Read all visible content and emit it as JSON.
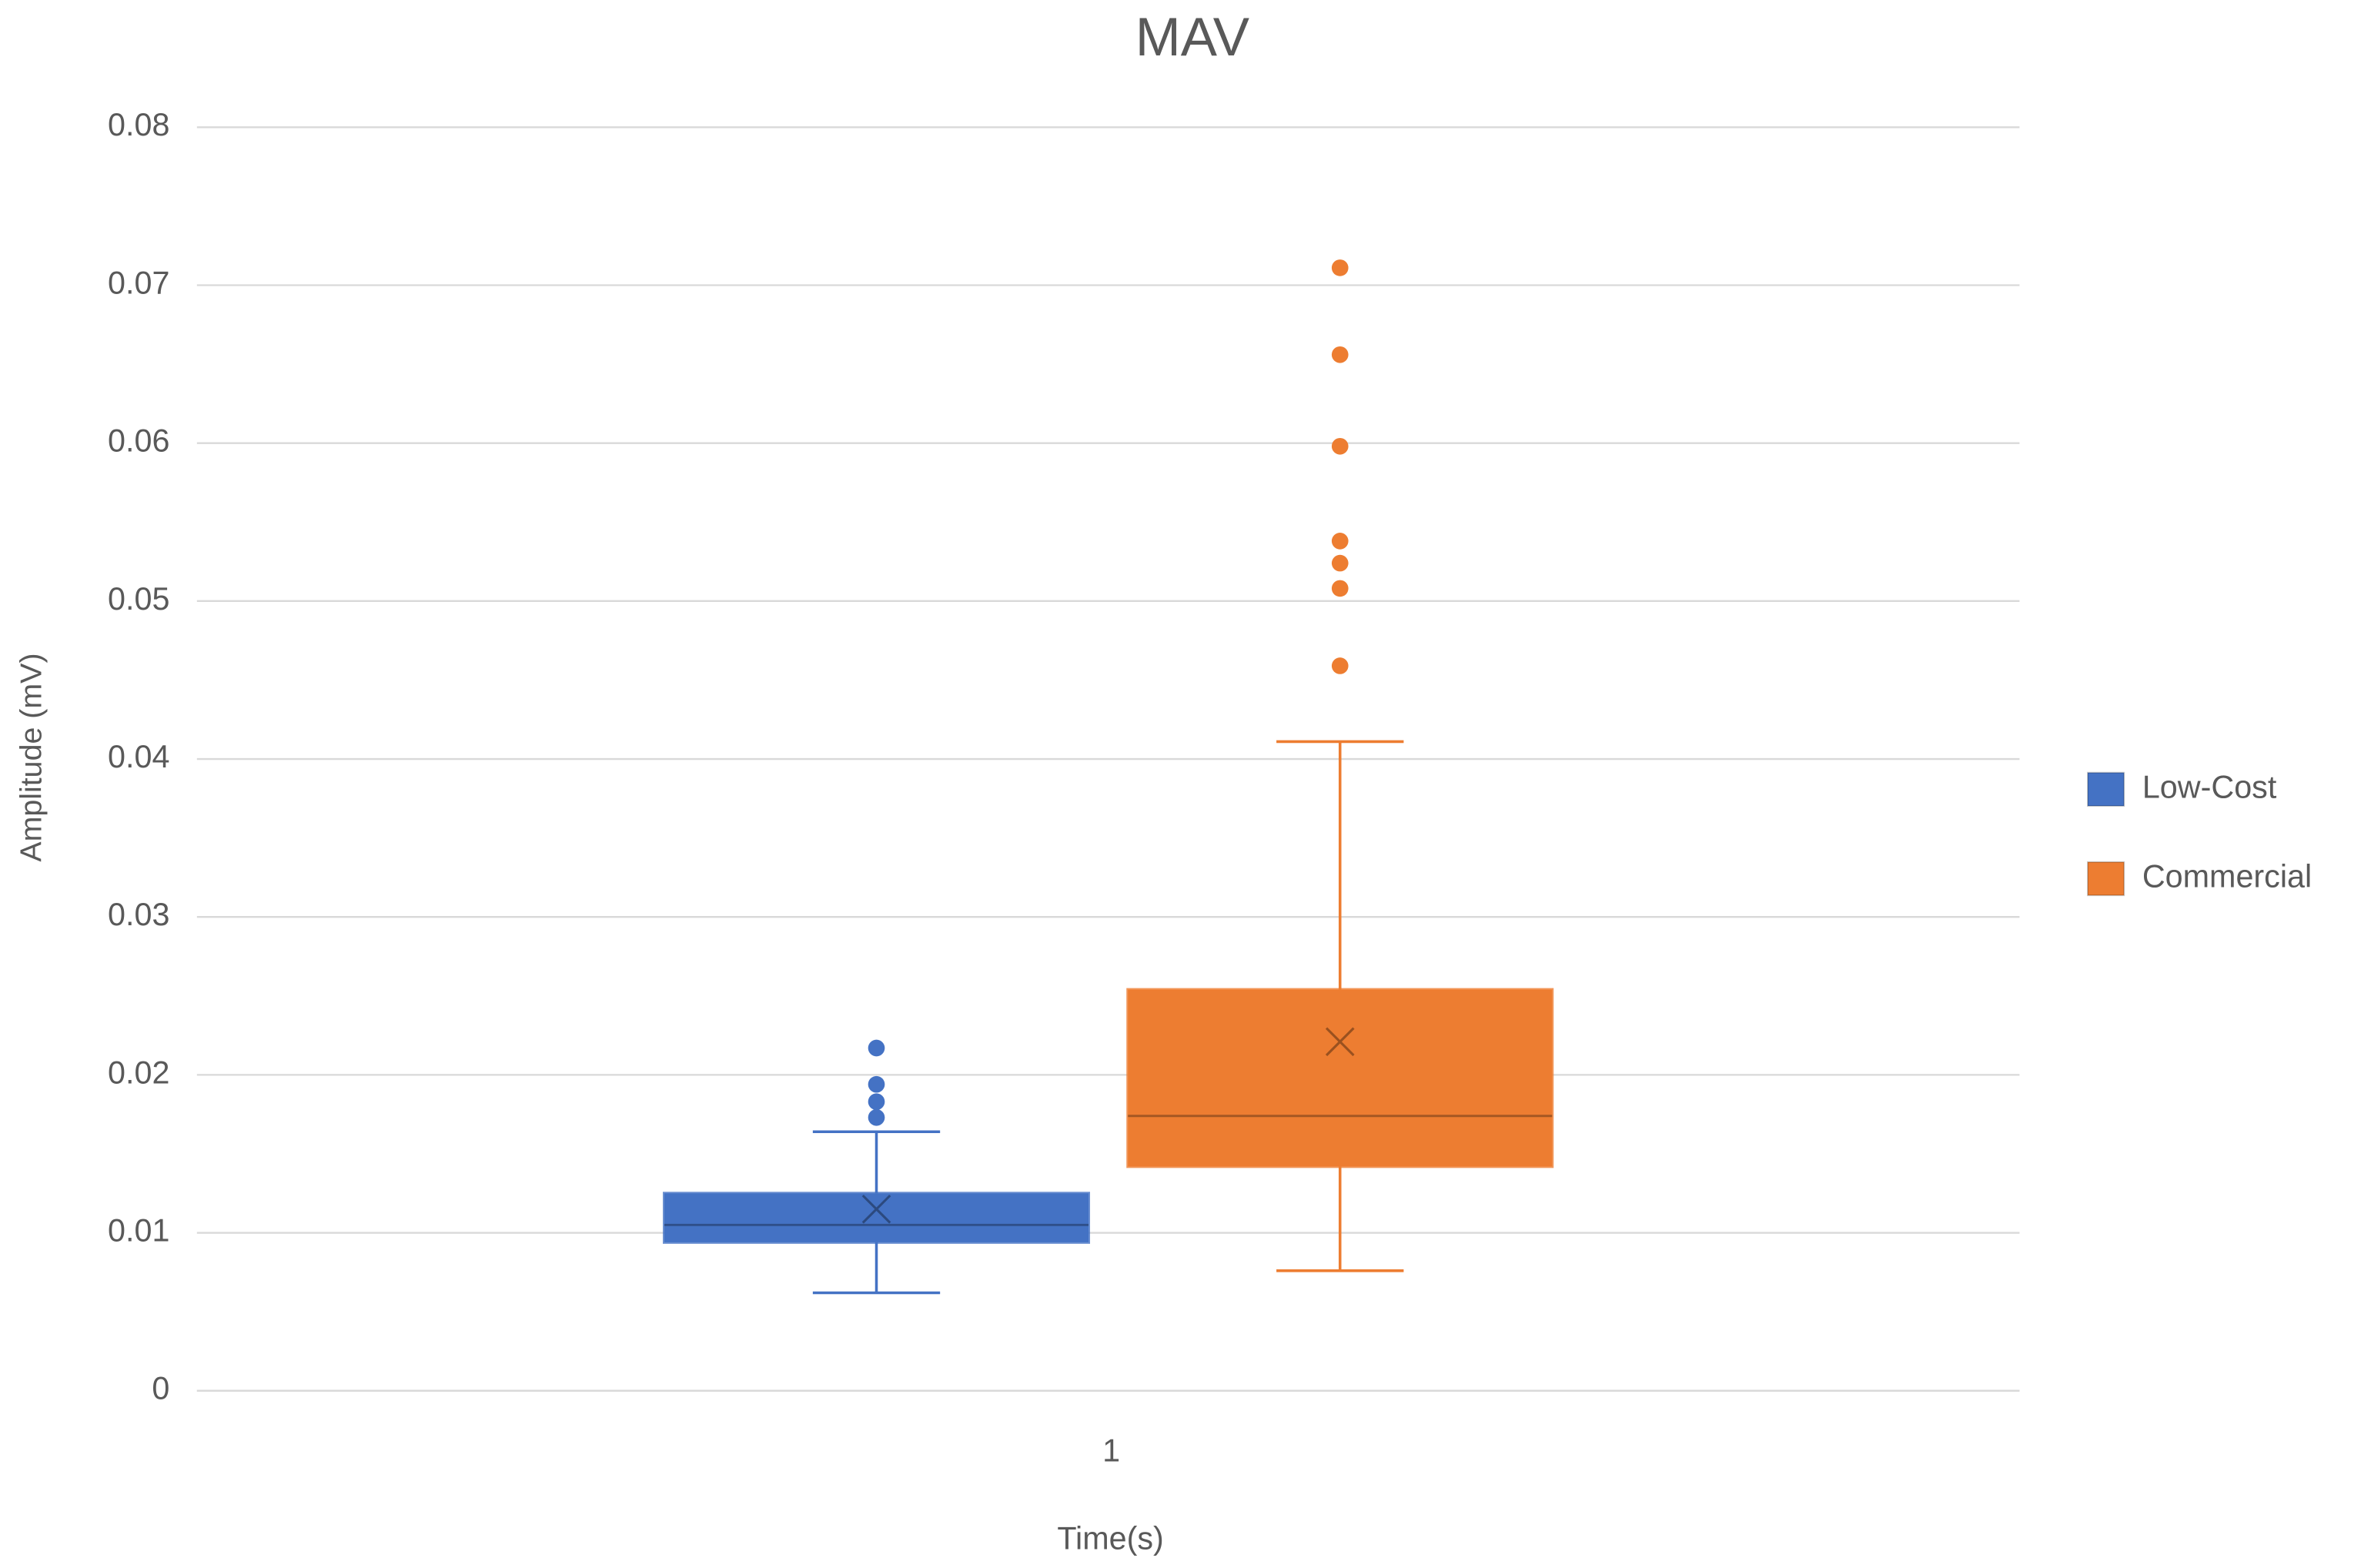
{
  "chart_data": {
    "type": "box",
    "title": "MAV",
    "x_label": "Time(s)",
    "y_label": "Amplitude (mV)",
    "categories": [
      "1"
    ],
    "ylim": [
      0,
      0.08
    ],
    "yticks": [
      0,
      0.01,
      0.02,
      0.03,
      0.04,
      0.05,
      0.06,
      0.07,
      0.08
    ],
    "grid": true,
    "legend": "right",
    "series": [
      {
        "name": "Low-Cost",
        "color": "#4472c4",
        "min": 0.0062,
        "q1": 0.0094,
        "median": 0.0105,
        "q3": 0.0125,
        "max": 0.0164,
        "mean": 0.0115,
        "outliers": [
          0.0173,
          0.0183,
          0.0194,
          0.0217
        ]
      },
      {
        "name": "Commercial",
        "color": "#ed7d31",
        "min": 0.0076,
        "q1": 0.0142,
        "median": 0.0174,
        "q3": 0.0254,
        "max": 0.0411,
        "mean": 0.0221,
        "outliers": [
          0.0459,
          0.0508,
          0.0524,
          0.0538,
          0.0598,
          0.0656,
          0.0711
        ]
      }
    ]
  }
}
